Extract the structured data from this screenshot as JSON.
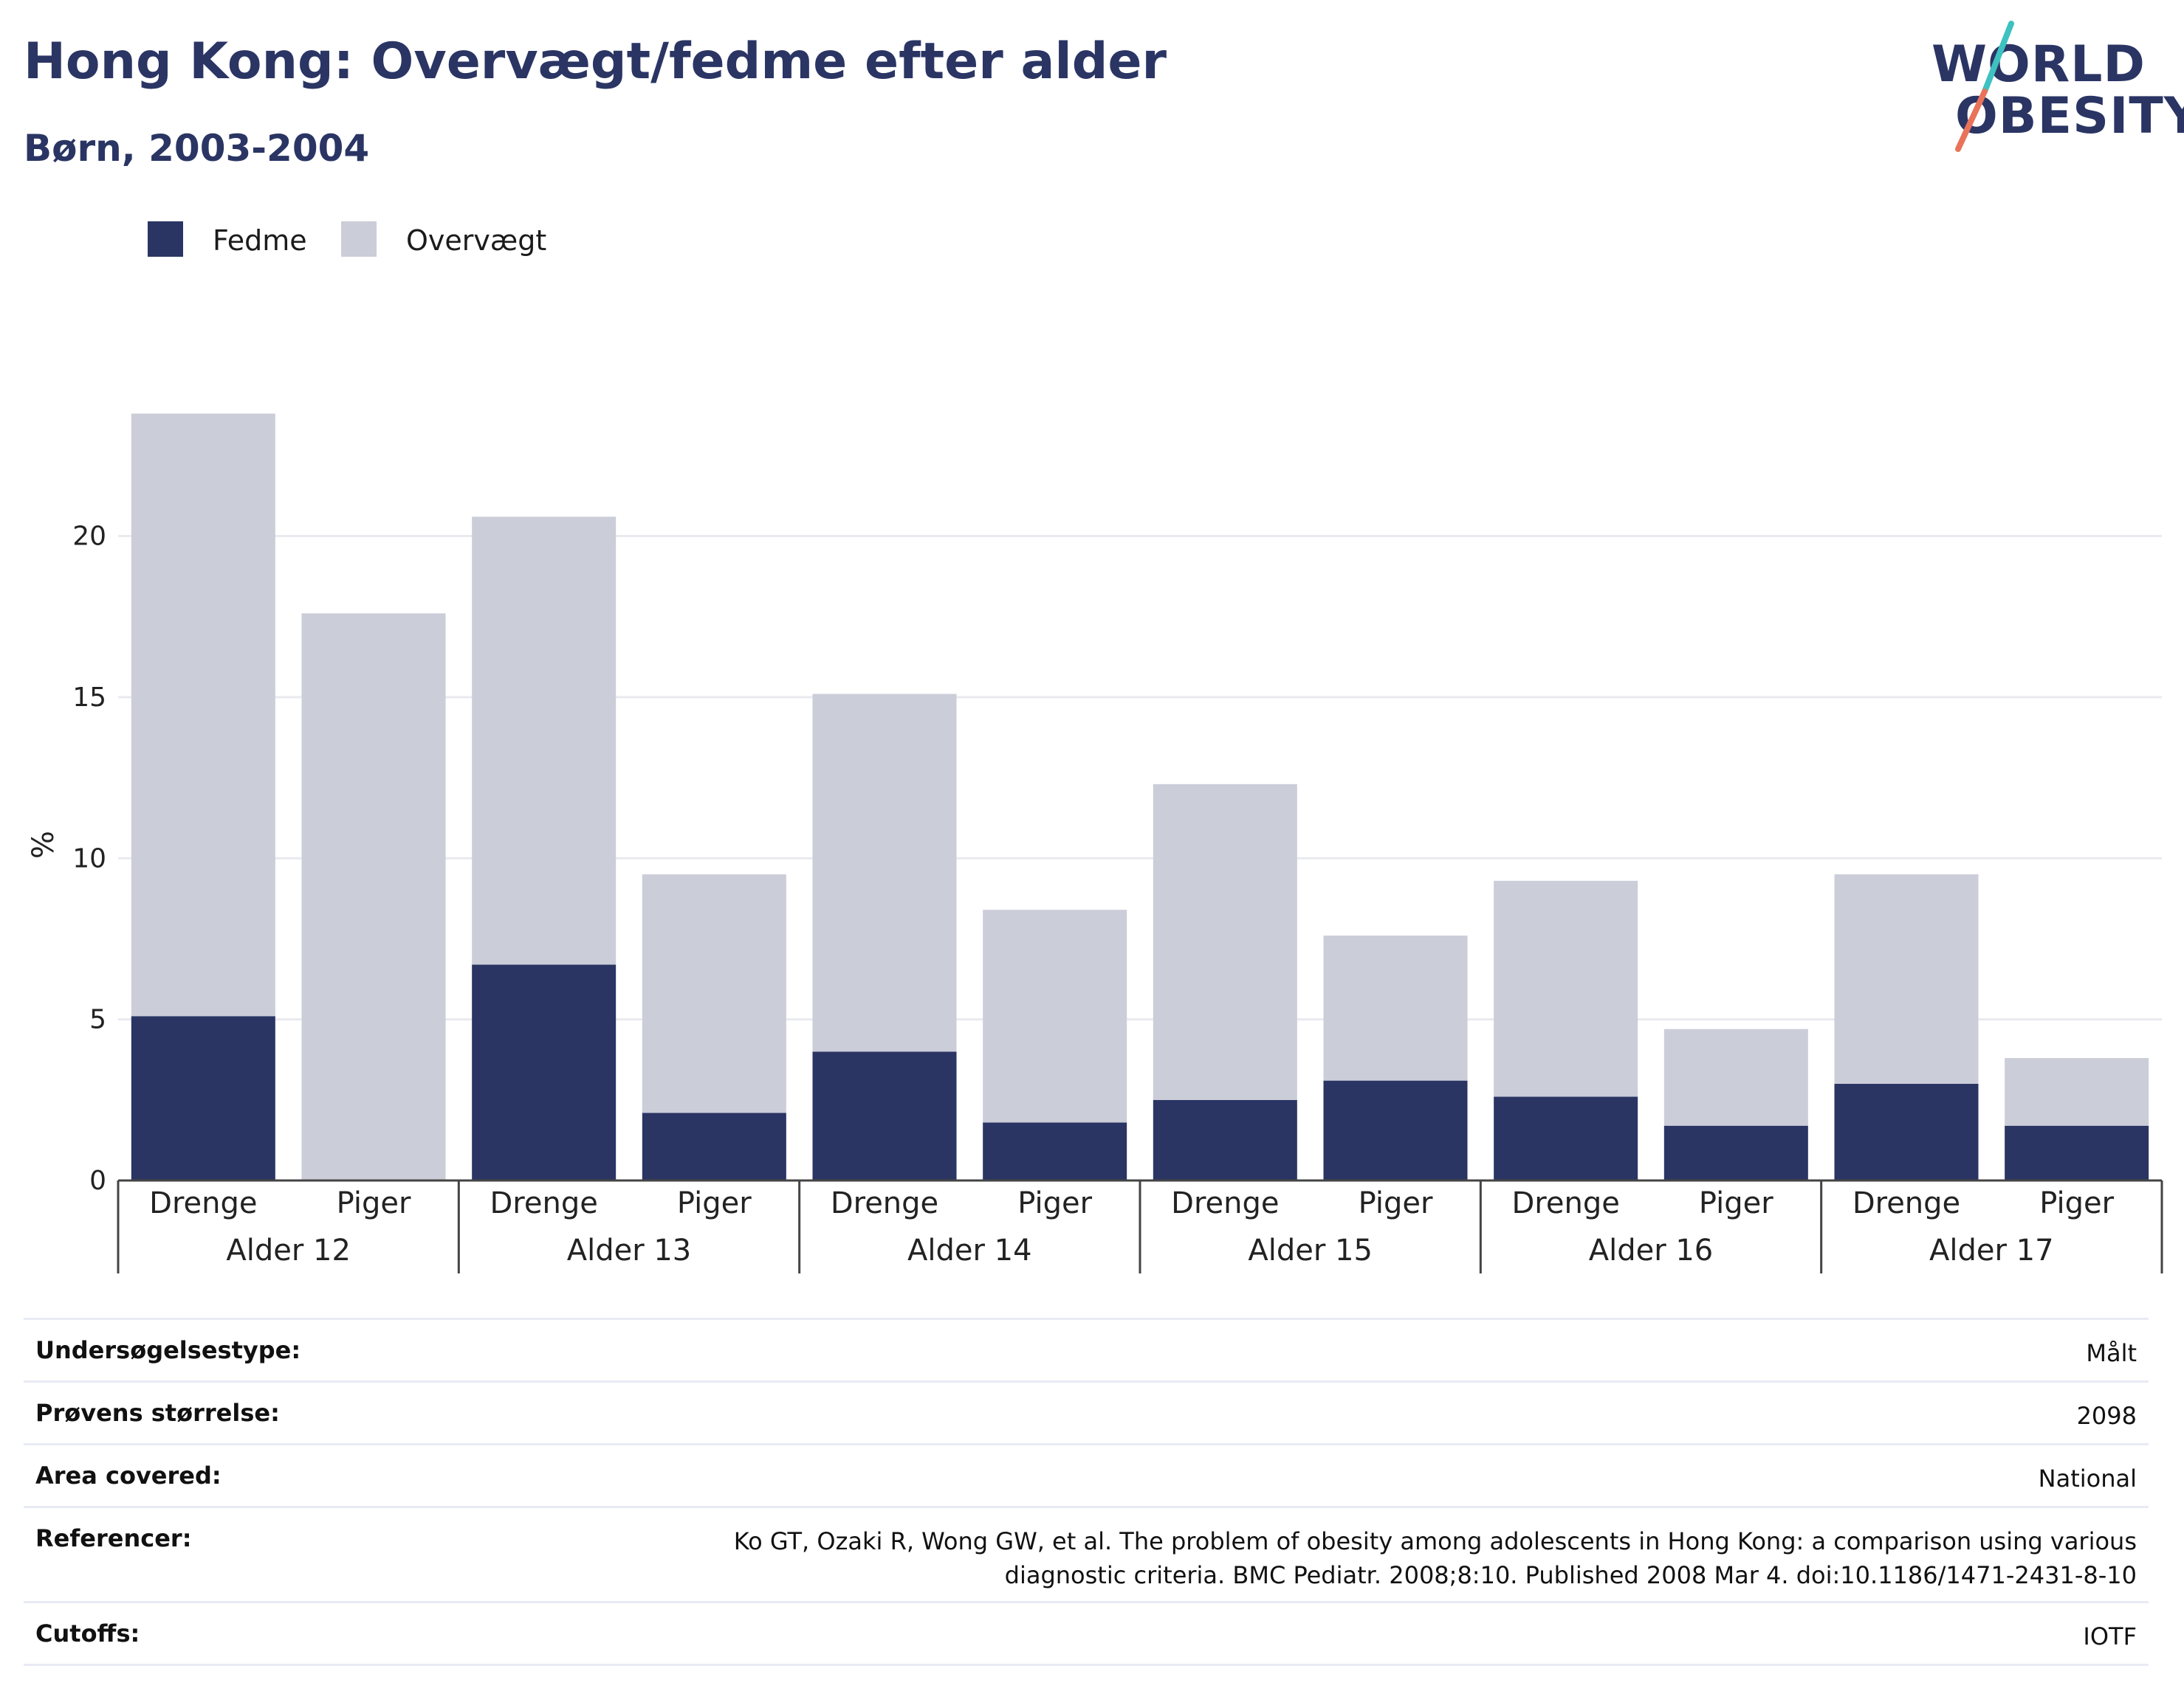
{
  "header": {
    "title": "Hong Kong: Overvægt/fedme efter alder",
    "subtitle": "Børn, 2003-2004"
  },
  "logo": {
    "line1": "WORLD",
    "line2": "OBESITY",
    "colors": {
      "text": "#2a3564",
      "slash_top": "#3ec1c1",
      "slash_bottom": "#e8735a"
    }
  },
  "legend": [
    {
      "label": "Fedme",
      "color": "#2a3564"
    },
    {
      "label": "Overvægt",
      "color": "#cbcdd9"
    }
  ],
  "chart_data": {
    "type": "bar",
    "stacked": true,
    "ylabel": "%",
    "ylim": [
      0,
      24.5
    ],
    "yticks": [
      0,
      5,
      10,
      15,
      20
    ],
    "grid": true,
    "groups": [
      "Alder 12",
      "Alder 13",
      "Alder 14",
      "Alder 15",
      "Alder 16",
      "Alder 17"
    ],
    "subcategories": [
      "Drenge",
      "Piger"
    ],
    "series": [
      {
        "name": "Fedme",
        "color": "#2a3564",
        "values": [
          5.1,
          0,
          6.7,
          2.1,
          4.0,
          1.8,
          2.5,
          3.1,
          2.6,
          1.7,
          3.0,
          1.7
        ]
      },
      {
        "name": "Overvægt",
        "color": "#cbcdd9",
        "values": [
          18.7,
          17.6,
          13.9,
          7.4,
          11.1,
          6.6,
          9.8,
          4.5,
          6.7,
          3.0,
          6.5,
          2.1
        ]
      }
    ]
  },
  "info": [
    {
      "label": "Undersøgelsestype:",
      "value": "Målt"
    },
    {
      "label": "Prøvens størrelse:",
      "value": "2098"
    },
    {
      "label": "Area covered:",
      "value": "National"
    },
    {
      "label": "Referencer:",
      "value": "Ko GT, Ozaki R, Wong GW, et al. The problem of obesity among adolescents in Hong Kong: a comparison using various diagnostic criteria. BMC Pediatr. 2008;8:10. Published 2008 Mar 4. doi:10.1186/1471-2431-8-10"
    },
    {
      "label": "Cutoffs:",
      "value": "IOTF"
    }
  ]
}
